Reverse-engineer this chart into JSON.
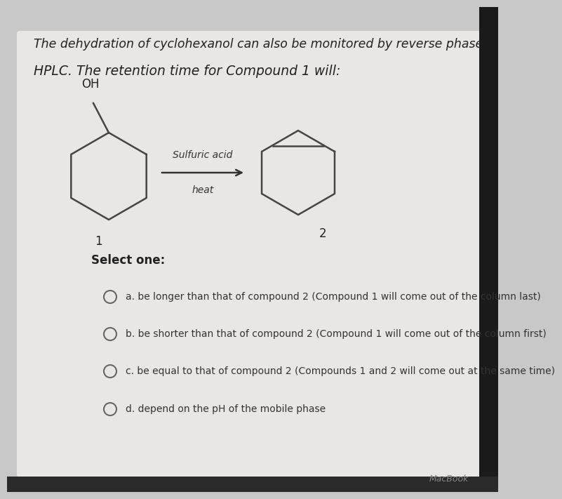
{
  "bg_color": "#c8c8c8",
  "card_color": "#e9e7e5",
  "title_line1": "The dehydration of cyclohexanol can also be monitored by reverse phase",
  "title_line2": "HPLC. The retention time for Compound 1 will:",
  "select_label": "Select one:",
  "options": [
    "a. be longer than that of compound 2 (Compound 1 will come out of the column last)",
    "b. be shorter than that of compound 2 (Compound 1 will come out of the column first)",
    "c. be equal to that of compound 2 (Compounds 1 and 2 will come out at the same time)",
    "d. depend on the pH of the mobile phase"
  ],
  "reagent_line1": "Sulfuric acid",
  "reagent_line2": "heat",
  "compound1_label": "1",
  "compound2_label": "2",
  "title_fontsize": 12.5,
  "option_fontsize": 10,
  "select_fontsize": 12,
  "macbook_text": "MacBook"
}
